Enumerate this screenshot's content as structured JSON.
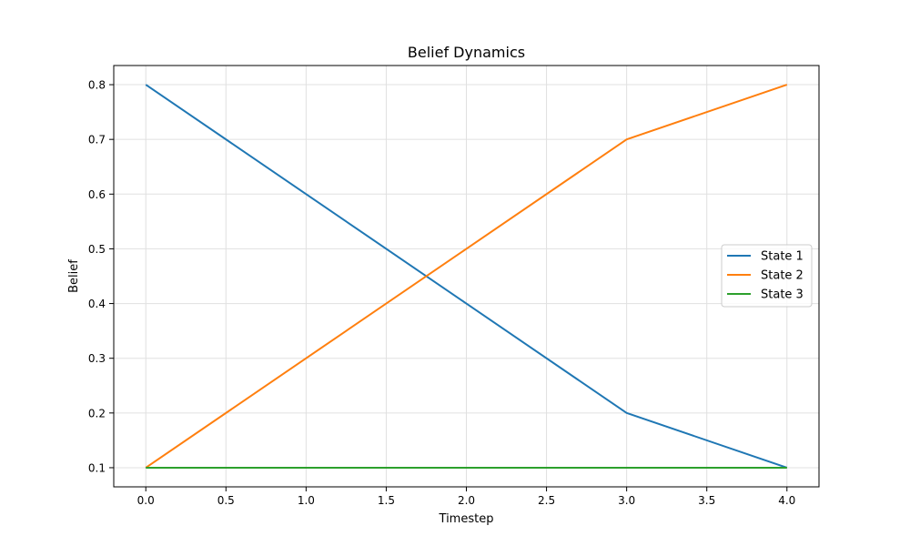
{
  "chart_data": {
    "type": "line",
    "title": "Belief Dynamics",
    "xlabel": "Timestep",
    "ylabel": "Belief",
    "x": [
      0,
      1,
      2,
      3,
      4
    ],
    "xlim": [
      -0.2,
      4.2
    ],
    "ylim": [
      0.065,
      0.835
    ],
    "xticks": [
      0.0,
      0.5,
      1.0,
      1.5,
      2.0,
      2.5,
      3.0,
      3.5,
      4.0
    ],
    "xtick_labels": [
      "0.0",
      "0.5",
      "1.0",
      "1.5",
      "2.0",
      "2.5",
      "3.0",
      "3.5",
      "4.0"
    ],
    "yticks": [
      0.1,
      0.2,
      0.3,
      0.4,
      0.5,
      0.6,
      0.7,
      0.8
    ],
    "ytick_labels": [
      "0.1",
      "0.2",
      "0.3",
      "0.4",
      "0.5",
      "0.6",
      "0.7",
      "0.8"
    ],
    "grid": true,
    "legend_position": "center-right",
    "series": [
      {
        "name": "State 1",
        "color": "#1f77b4",
        "values": [
          0.8,
          0.6,
          0.4,
          0.2,
          0.1
        ]
      },
      {
        "name": "State 2",
        "color": "#ff7f0e",
        "values": [
          0.1,
          0.3,
          0.5,
          0.7,
          0.8
        ]
      },
      {
        "name": "State 3",
        "color": "#2ca02c",
        "values": [
          0.1,
          0.1,
          0.1,
          0.1,
          0.1
        ]
      }
    ]
  }
}
